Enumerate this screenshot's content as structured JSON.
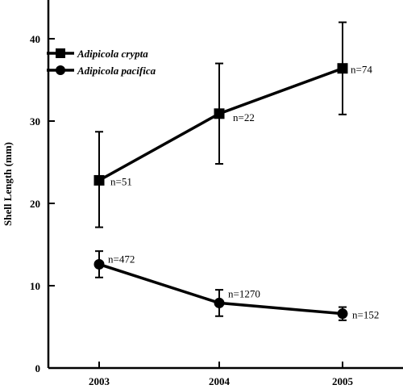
{
  "chart_data": {
    "type": "line",
    "ylabel": "Shell Length (mm)",
    "xlabel": "",
    "categories": [
      "2003",
      "2004",
      "2005"
    ],
    "ylim": [
      0,
      45
    ],
    "yticks": [
      0,
      10,
      20,
      30,
      40
    ],
    "legend_position": "top-left",
    "series": [
      {
        "name": "Adipicola crypta",
        "marker": "square",
        "color": "#000000",
        "values": [
          22.8,
          30.9,
          36.4
        ],
        "error_low": [
          17.1,
          24.8,
          30.8
        ],
        "error_high": [
          28.7,
          37.0,
          42.0
        ],
        "n_labels": [
          "n=51",
          "n=22",
          "n=74"
        ]
      },
      {
        "name": "Adipicola pacifica",
        "marker": "circle",
        "color": "#000000",
        "values": [
          12.6,
          7.9,
          6.6
        ],
        "error_low": [
          11.0,
          6.3,
          5.8
        ],
        "error_high": [
          14.2,
          9.5,
          7.4
        ],
        "n_labels": [
          "n=472",
          "n=1270",
          "n=152"
        ]
      }
    ]
  }
}
